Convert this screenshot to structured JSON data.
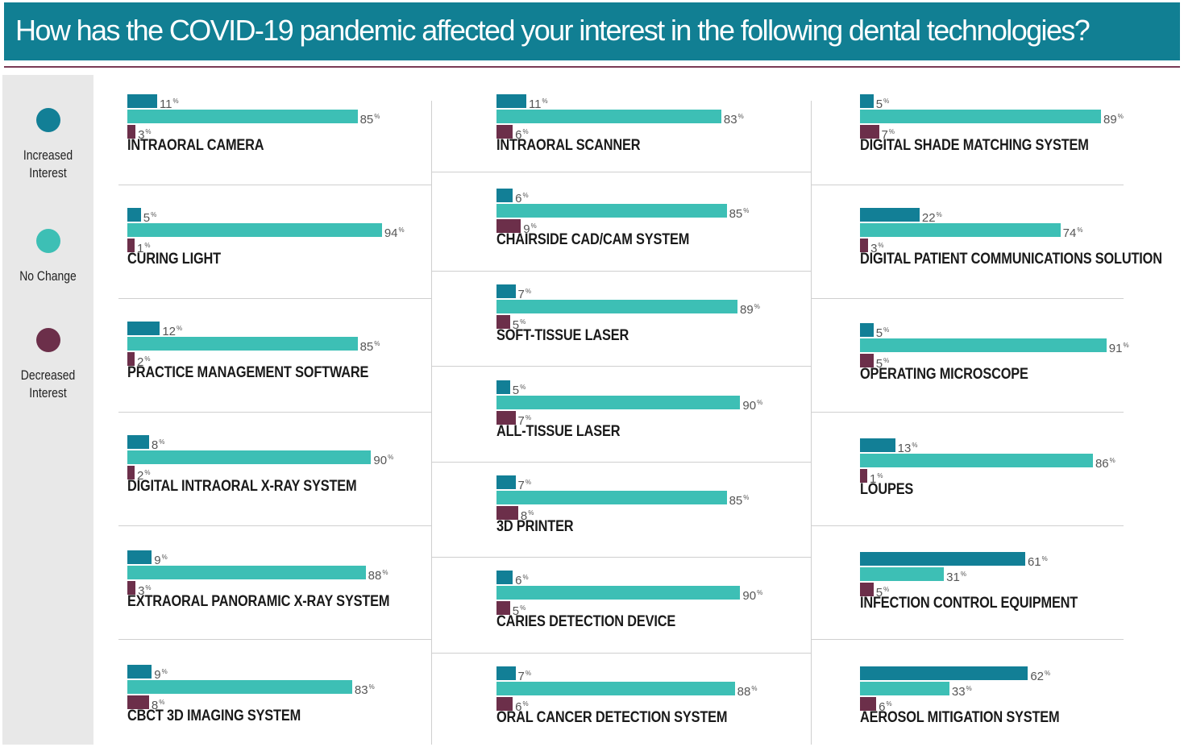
{
  "title": "How has the COVID-19 pandemic affected your interest in the following dental technologies?",
  "colors": {
    "title_bg": "#117f93",
    "increased": "#127f96",
    "no_change": "#3dbfb5",
    "decreased": "#6c2f4a",
    "rule": "#7a3a55",
    "legend_bg": "#e8e8e8"
  },
  "legend": [
    {
      "key": "increased",
      "label_line1": "Increased",
      "label_line2": "Interest"
    },
    {
      "key": "no_change",
      "label_line1": "No Change",
      "label_line2": ""
    },
    {
      "key": "decreased",
      "label_line1": "Decreased",
      "label_line2": "Interest"
    }
  ],
  "percent_symbol": "%",
  "chart_data": {
    "type": "bar",
    "orientation": "horizontal",
    "title": "How has the COVID-19 pandemic affected your interest in the following dental technologies?",
    "series_names": [
      "Increased Interest",
      "No Change",
      "Decreased Interest"
    ],
    "unit": "%",
    "columns": [
      [
        {
          "label": "INTRAORAL CAMERA",
          "values": [
            11,
            85,
            3
          ]
        },
        {
          "label": "CURING LIGHT",
          "values": [
            5,
            94,
            1
          ]
        },
        {
          "label": "PRACTICE MANAGEMENT SOFTWARE",
          "values": [
            12,
            85,
            2
          ]
        },
        {
          "label": "DIGITAL INTRAORAL X-RAY SYSTEM",
          "values": [
            8,
            90,
            2
          ]
        },
        {
          "label": "EXTRAORAL PANORAMIC X-RAY SYSTEM",
          "values": [
            9,
            88,
            3
          ]
        },
        {
          "label": "CBCT 3D IMAGING SYSTEM",
          "values": [
            9,
            83,
            8
          ]
        }
      ],
      [
        {
          "label": "INTRAORAL SCANNER",
          "values": [
            11,
            83,
            6
          ]
        },
        {
          "label": "CHAIRSIDE CAD/CAM SYSTEM",
          "values": [
            6,
            85,
            9
          ]
        },
        {
          "label": "SOFT-TISSUE LASER",
          "values": [
            7,
            89,
            5
          ]
        },
        {
          "label": "ALL-TISSUE LASER",
          "values": [
            5,
            90,
            7
          ]
        },
        {
          "label": "3D PRINTER",
          "values": [
            7,
            85,
            8
          ]
        },
        {
          "label": "CARIES DETECTION DEVICE",
          "values": [
            6,
            90,
            5
          ]
        },
        {
          "label": "ORAL CANCER DETECTION SYSTEM",
          "values": [
            7,
            88,
            6
          ]
        }
      ],
      [
        {
          "label": "DIGITAL SHADE MATCHING SYSTEM",
          "values": [
            5,
            89,
            7
          ]
        },
        {
          "label": "DIGITAL PATIENT COMMUNICATIONS SOLUTION",
          "values": [
            22,
            74,
            3
          ]
        },
        {
          "label": "OPERATING MICROSCOPE",
          "values": [
            5,
            91,
            5
          ]
        },
        {
          "label": "LOUPES",
          "values": [
            13,
            86,
            1
          ]
        },
        {
          "label": "INFECTION CONTROL EQUIPMENT",
          "values": [
            61,
            31,
            5
          ]
        },
        {
          "label": "AEROSOL MITIGATION SYSTEM",
          "values": [
            62,
            33,
            6
          ]
        }
      ]
    ]
  }
}
